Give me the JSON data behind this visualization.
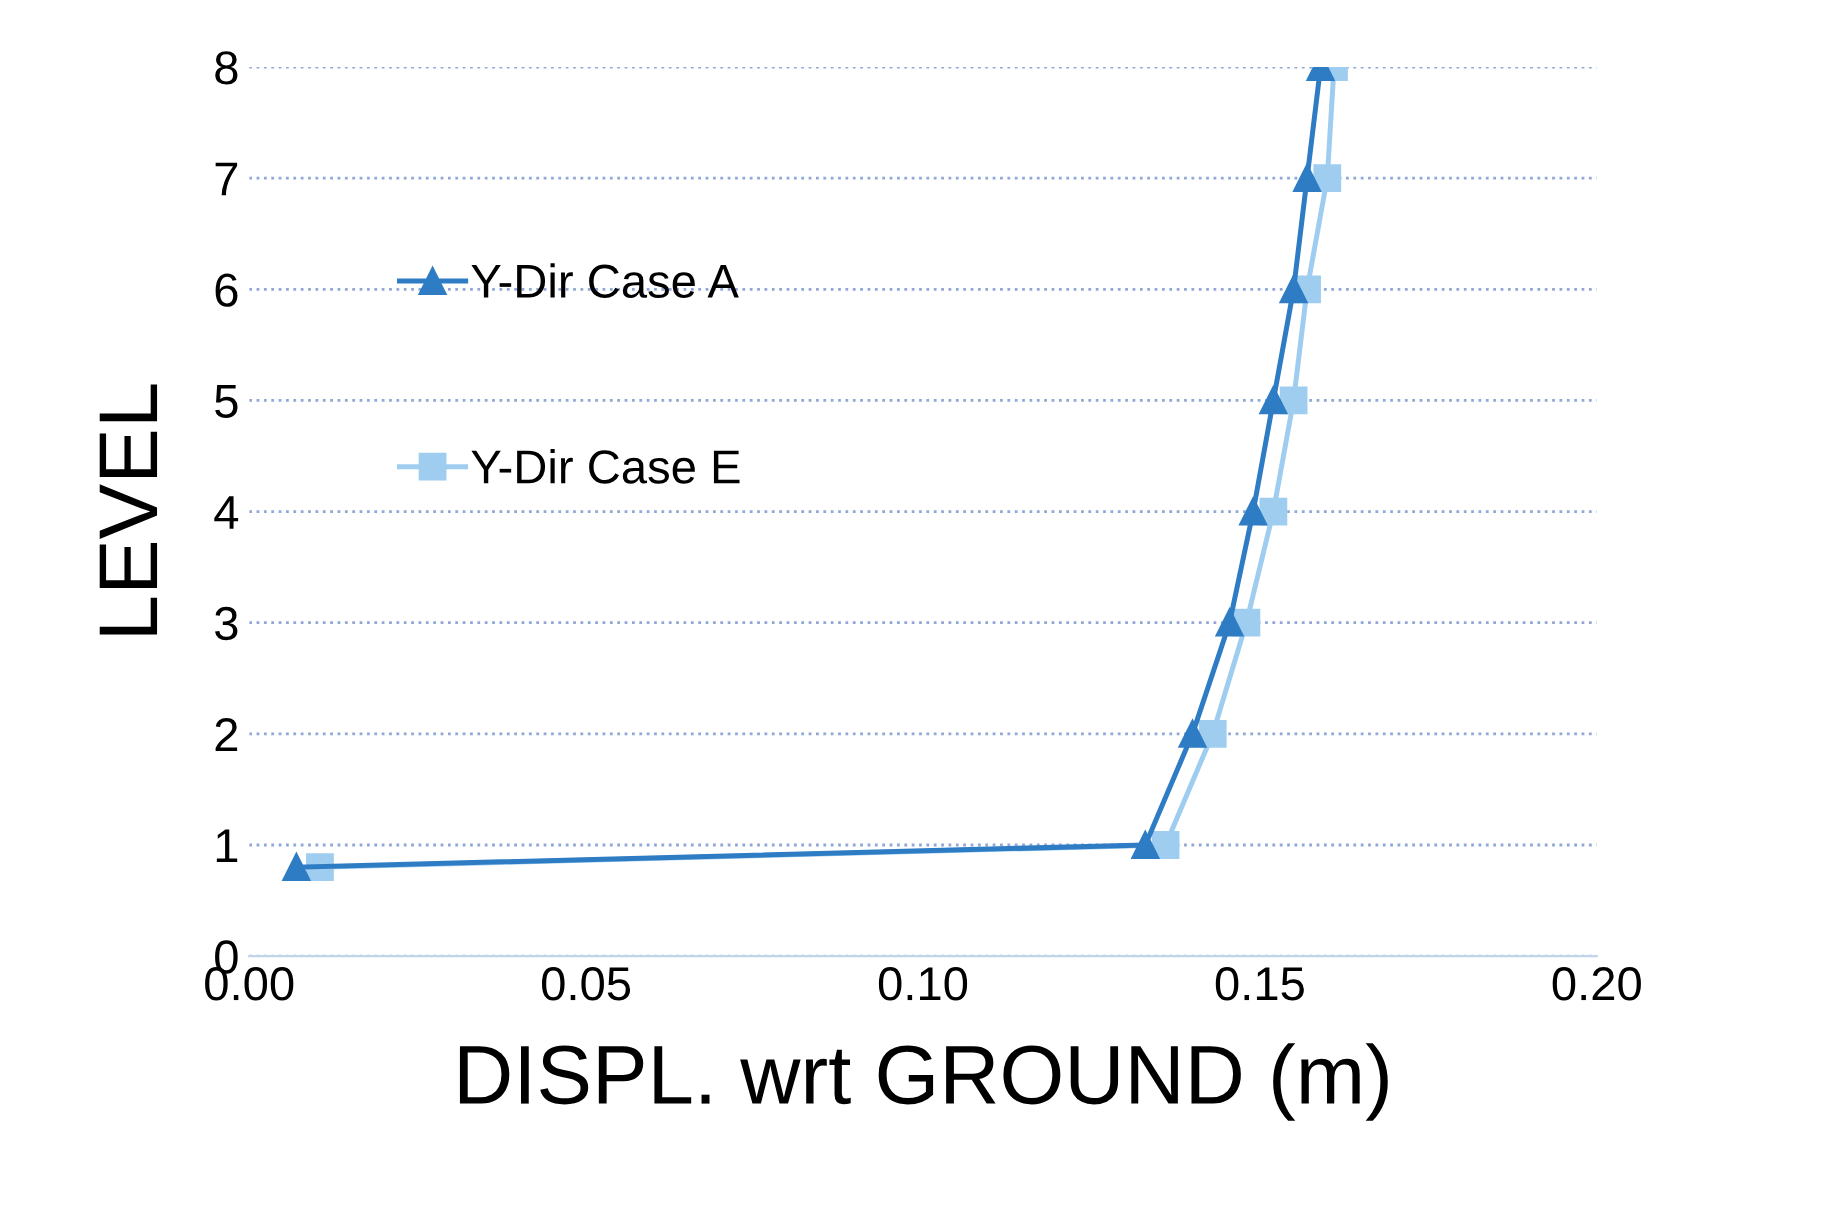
{
  "chart_data": {
    "type": "line",
    "xlabel": "DISPL. wrt GROUND (m)",
    "ylabel": "LEVEL",
    "xlim": [
      0,
      0.2
    ],
    "xticks": [
      {
        "value": 0,
        "label": "0.00"
      },
      {
        "value": 0.05,
        "label": "0.05"
      },
      {
        "value": 0.1,
        "label": "0.10"
      },
      {
        "value": 0.15,
        "label": "0.15"
      },
      {
        "value": 0.2,
        "label": "0.20"
      }
    ],
    "ylim": [
      0,
      8
    ],
    "yticks": [
      0,
      1,
      2,
      3,
      4,
      5,
      6,
      7,
      8
    ],
    "grid": "y",
    "legend": "left",
    "series": [
      {
        "name": "Y-Dir Case A",
        "color": "#2e7cc4",
        "marker": "triangle",
        "x": [
          0.007,
          0.133,
          0.14,
          0.1455,
          0.149,
          0.152,
          0.155,
          0.157,
          0.159
        ],
        "values": [
          0.8,
          1,
          2,
          3,
          4,
          5,
          6,
          7,
          8
        ]
      },
      {
        "name": "Y-Dir Case E",
        "color": "#9fcdf0",
        "marker": "square",
        "x": [
          0.0105,
          0.136,
          0.143,
          0.148,
          0.152,
          0.155,
          0.157,
          0.16,
          0.161
        ],
        "values": [
          0.8,
          1,
          2,
          3,
          4,
          5,
          6,
          7,
          8
        ]
      }
    ]
  }
}
